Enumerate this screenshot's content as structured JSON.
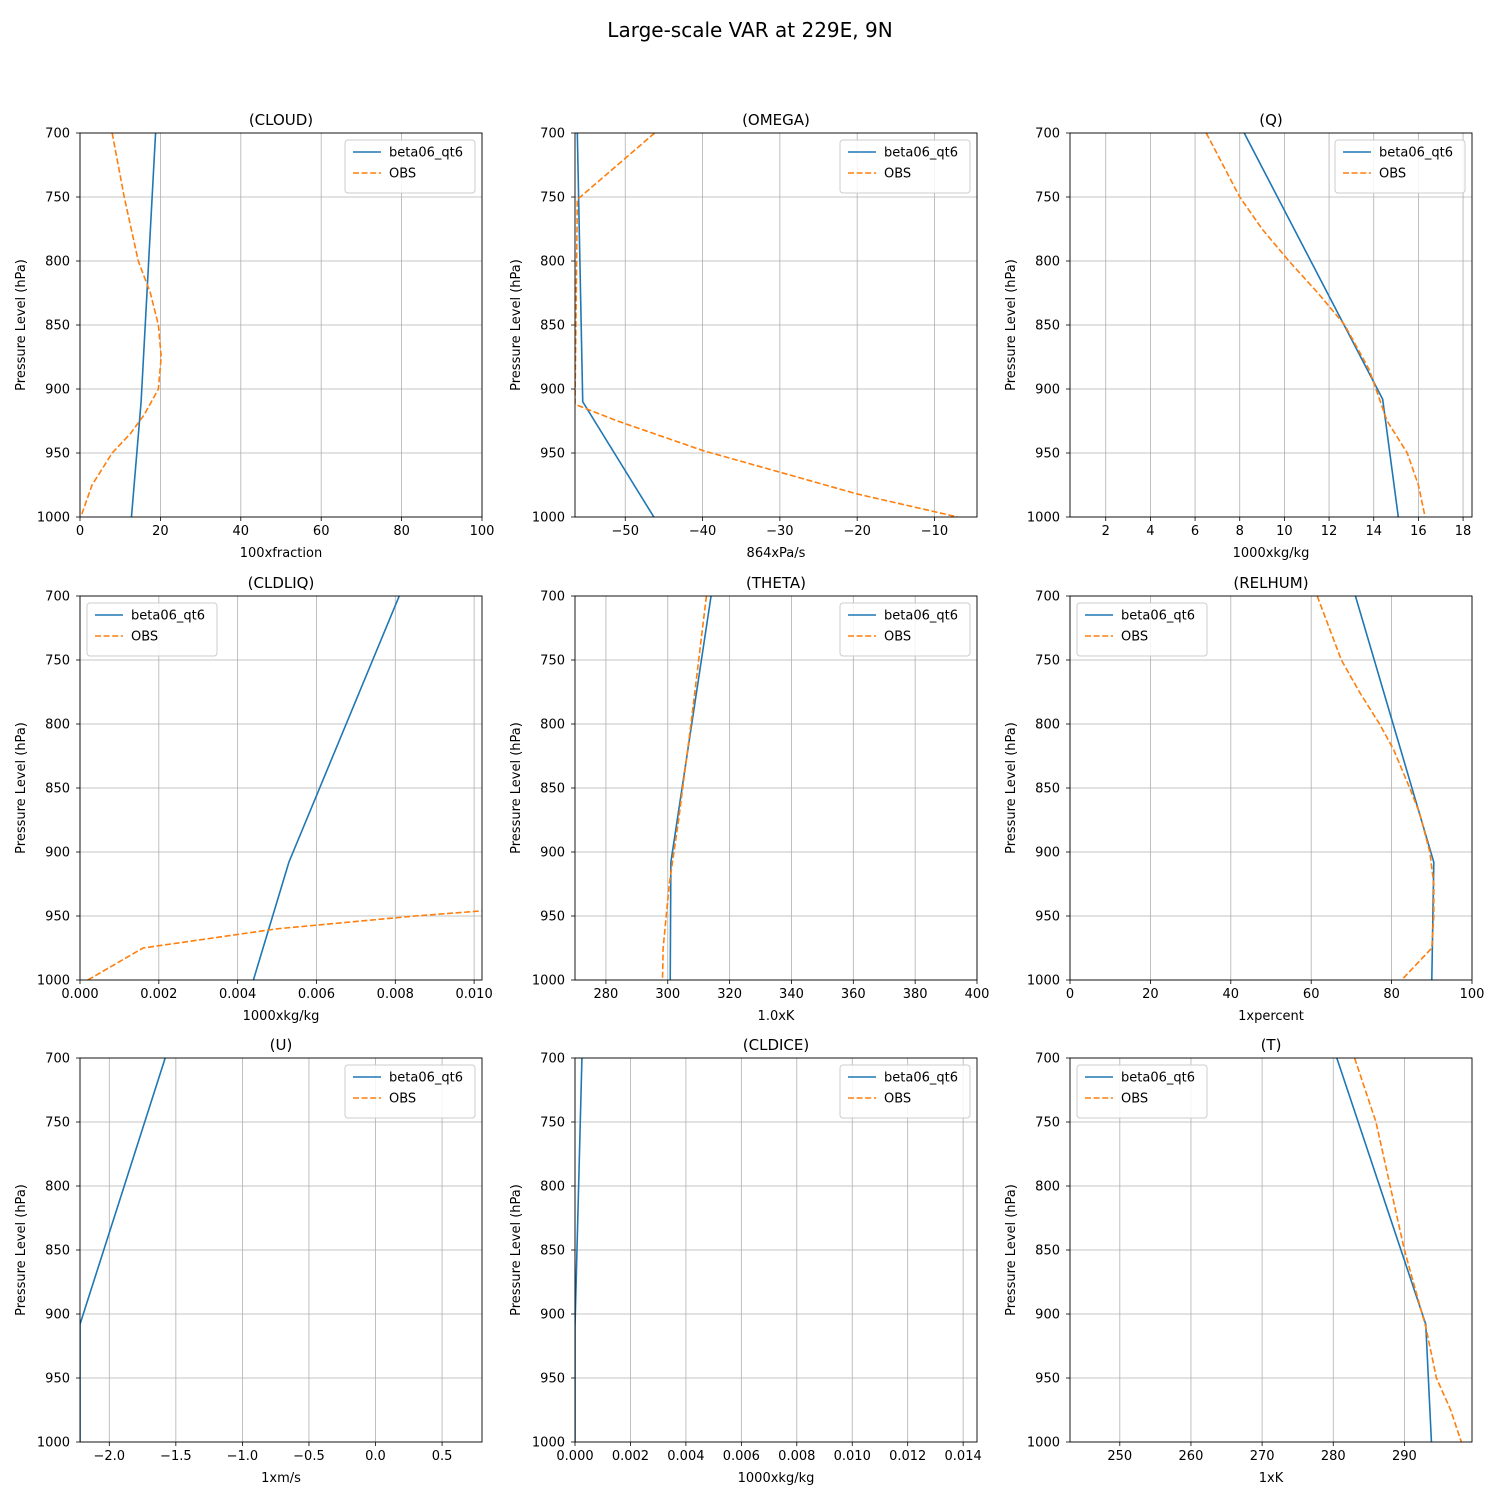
{
  "figure_title": "Large-scale VAR at 229E, 9N",
  "colors": {
    "model": "#1f77b4",
    "obs": "#ff7f0e"
  },
  "chart_data": [
    {
      "type": "line",
      "title": "(CLOUD)",
      "xlabel": "100xfraction",
      "ylabel": "Pressure Level (hPa)",
      "xlim": [
        0,
        100
      ],
      "ylim": [
        1000,
        700
      ],
      "xticks": [
        0,
        20,
        40,
        60,
        80,
        100
      ],
      "xtick_labels": [
        "0",
        "20",
        "40",
        "60",
        "80",
        "100"
      ],
      "yticks": [
        700,
        750,
        800,
        850,
        900,
        950,
        1000
      ],
      "ytick_labels": [
        "700",
        "750",
        "800",
        "850",
        "900",
        "950",
        "1000"
      ],
      "legend": "top-right",
      "series": [
        {
          "name": "beta06_qt6",
          "style": "solid",
          "points": [
            [
              18.8,
              700
            ],
            [
              15.2,
              910
            ],
            [
              12.8,
              1000
            ]
          ]
        },
        {
          "name": "OBS",
          "style": "dashed",
          "points": [
            [
              8.0,
              700
            ],
            [
              11.0,
              750
            ],
            [
              14.5,
              800
            ],
            [
              17.5,
              825
            ],
            [
              19.5,
              850
            ],
            [
              20.2,
              875
            ],
            [
              19.5,
              900
            ],
            [
              16.0,
              920
            ],
            [
              12.5,
              935
            ],
            [
              8.0,
              950
            ],
            [
              3.0,
              975
            ],
            [
              0.2,
              1000
            ]
          ]
        }
      ]
    },
    {
      "type": "line",
      "title": "(OMEGA)",
      "xlabel": "864xPa/s",
      "ylabel": "Pressure Level (hPa)",
      "xlim": [
        -56.5,
        -4.5
      ],
      "ylim": [
        1000,
        700
      ],
      "xticks": [
        -50,
        -40,
        -30,
        -20,
        -10
      ],
      "xtick_labels": [
        "−50",
        "−40",
        "−30",
        "−20",
        "−10"
      ],
      "yticks": [
        700,
        750,
        800,
        850,
        900,
        950,
        1000
      ],
      "ytick_labels": [
        "700",
        "750",
        "800",
        "850",
        "900",
        "950",
        "1000"
      ],
      "legend": "top-right",
      "series": [
        {
          "name": "beta06_qt6",
          "style": "solid",
          "points": [
            [
              -56.2,
              700
            ],
            [
              -55.5,
              910
            ],
            [
              -46.3,
              1000
            ]
          ]
        },
        {
          "name": "OBS",
          "style": "dashed",
          "points": [
            [
              -46.2,
              700
            ],
            [
              -56.2,
              752
            ],
            [
              -56.5,
              912
            ],
            [
              -51.0,
              925
            ],
            [
              -40.0,
              948
            ],
            [
              -30.0,
              965
            ],
            [
              -20.0,
              982
            ],
            [
              -7.0,
              1000
            ]
          ]
        }
      ]
    },
    {
      "type": "line",
      "title": "(Q)",
      "xlabel": "1000xkg/kg",
      "ylabel": "Pressure Level (hPa)",
      "xlim": [
        0.4,
        18.4
      ],
      "ylim": [
        1000,
        700
      ],
      "xticks": [
        2,
        4,
        6,
        8,
        10,
        12,
        14,
        16,
        18
      ],
      "xtick_labels": [
        "2",
        "4",
        "6",
        "8",
        "10",
        "12",
        "14",
        "16",
        "18"
      ],
      "yticks": [
        700,
        750,
        800,
        850,
        900,
        950,
        1000
      ],
      "ytick_labels": [
        "700",
        "750",
        "800",
        "850",
        "900",
        "950",
        "1000"
      ],
      "legend": "top-right",
      "series": [
        {
          "name": "beta06_qt6",
          "style": "solid",
          "points": [
            [
              8.2,
              700
            ],
            [
              14.4,
              908
            ],
            [
              15.1,
              1000
            ]
          ]
        },
        {
          "name": "OBS",
          "style": "dashed",
          "points": [
            [
              6.5,
              700
            ],
            [
              8.0,
              750
            ],
            [
              9.0,
              775
            ],
            [
              10.2,
              800
            ],
            [
              11.5,
              825
            ],
            [
              12.7,
              850
            ],
            [
              13.8,
              885
            ],
            [
              14.6,
              925
            ],
            [
              15.5,
              950
            ],
            [
              16.0,
              975
            ],
            [
              16.3,
              1000
            ]
          ]
        }
      ]
    },
    {
      "type": "line",
      "title": "(CLDLIQ)",
      "xlabel": "1000xkg/kg",
      "ylabel": "Pressure Level (hPa)",
      "xlim": [
        0,
        0.0102
      ],
      "ylim": [
        1000,
        700
      ],
      "xticks": [
        0,
        0.002,
        0.004,
        0.006,
        0.008,
        0.01
      ],
      "xtick_labels": [
        "0.000",
        "0.002",
        "0.004",
        "0.006",
        "0.008",
        "0.010"
      ],
      "yticks": [
        700,
        750,
        800,
        850,
        900,
        950,
        1000
      ],
      "ytick_labels": [
        "700",
        "750",
        "800",
        "850",
        "900",
        "950",
        "1000"
      ],
      "legend": "top-left",
      "series": [
        {
          "name": "beta06_qt6",
          "style": "solid",
          "points": [
            [
              0.0081,
              700
            ],
            [
              0.0053,
              908
            ],
            [
              0.0044,
              1000
            ]
          ]
        },
        {
          "name": "OBS",
          "style": "dashed",
          "points": [
            [
              0.0002,
              1000
            ],
            [
              0.0016,
              975
            ],
            [
              0.005,
              960
            ],
            [
              0.0085,
              950
            ],
            [
              0.0102,
              946
            ]
          ]
        }
      ]
    },
    {
      "type": "line",
      "title": "(THETA)",
      "xlabel": "1.0xK",
      "ylabel": "Pressure Level (hPa)",
      "xlim": [
        270,
        400
      ],
      "ylim": [
        1000,
        700
      ],
      "xticks": [
        280,
        300,
        320,
        340,
        360,
        380,
        400
      ],
      "xtick_labels": [
        "280",
        "300",
        "320",
        "340",
        "360",
        "380",
        "400"
      ],
      "yticks": [
        700,
        750,
        800,
        850,
        900,
        950,
        1000
      ],
      "ytick_labels": [
        "700",
        "750",
        "800",
        "850",
        "900",
        "950",
        "1000"
      ],
      "legend": "top-right",
      "series": [
        {
          "name": "beta06_qt6",
          "style": "solid",
          "points": [
            [
              314.0,
              700
            ],
            [
              301.0,
              908
            ],
            [
              300.8,
              1000
            ]
          ]
        },
        {
          "name": "OBS",
          "style": "dashed",
          "points": [
            [
              312.5,
              700
            ],
            [
              307.5,
              800
            ],
            [
              303.5,
              875
            ],
            [
              300.5,
              925
            ],
            [
              298.5,
              975
            ],
            [
              298.3,
              1000
            ]
          ]
        }
      ]
    },
    {
      "type": "line",
      "title": "(RELHUM)",
      "xlabel": "1xpercent",
      "ylabel": "Pressure Level (hPa)",
      "xlim": [
        0,
        100
      ],
      "ylim": [
        1000,
        700
      ],
      "xticks": [
        0,
        20,
        40,
        60,
        80,
        100
      ],
      "xtick_labels": [
        "0",
        "20",
        "40",
        "60",
        "80",
        "100"
      ],
      "yticks": [
        700,
        750,
        800,
        850,
        900,
        950,
        1000
      ],
      "ytick_labels": [
        "700",
        "750",
        "800",
        "850",
        "900",
        "950",
        "1000"
      ],
      "legend": "top-left",
      "series": [
        {
          "name": "beta06_qt6",
          "style": "solid",
          "points": [
            [
              71.0,
              700
            ],
            [
              90.5,
              908
            ],
            [
              90.0,
              1000
            ]
          ]
        },
        {
          "name": "OBS",
          "style": "dashed",
          "points": [
            [
              61.5,
              700
            ],
            [
              67.5,
              750
            ],
            [
              72.0,
              775
            ],
            [
              77.0,
              800
            ],
            [
              80.5,
              820
            ],
            [
              84.5,
              850
            ],
            [
              87.0,
              870
            ],
            [
              89.5,
              900
            ],
            [
              90.5,
              925
            ],
            [
              90.5,
              950
            ],
            [
              90.0,
              975
            ],
            [
              82.5,
              1000
            ]
          ]
        }
      ]
    },
    {
      "type": "line",
      "title": "(U)",
      "xlabel": "1xm/s",
      "ylabel": "Pressure Level (hPa)",
      "xlim": [
        -2.22,
        0.8
      ],
      "ylim": [
        1000,
        700
      ],
      "xticks": [
        -2.0,
        -1.5,
        -1.0,
        -0.5,
        0.0,
        0.5
      ],
      "xtick_labels": [
        "−2.0",
        "−1.5",
        "−1.0",
        "−0.5",
        "0.0",
        "0.5"
      ],
      "yticks": [
        700,
        750,
        800,
        850,
        900,
        950,
        1000
      ],
      "ytick_labels": [
        "700",
        "750",
        "800",
        "850",
        "900",
        "950",
        "1000"
      ],
      "legend": "top-right",
      "series": [
        {
          "name": "beta06_qt6",
          "style": "solid",
          "points": [
            [
              -1.58,
              700
            ],
            [
              -2.22,
              908
            ],
            [
              -2.22,
              1000
            ]
          ]
        },
        {
          "name": "OBS",
          "style": "dashed",
          "points": []
        }
      ]
    },
    {
      "type": "line",
      "title": "(CLDICE)",
      "xlabel": "1000xkg/kg",
      "ylabel": "Pressure Level (hPa)",
      "xlim": [
        0,
        0.0145
      ],
      "ylim": [
        1000,
        700
      ],
      "xticks": [
        0,
        0.002,
        0.004,
        0.006,
        0.008,
        0.01,
        0.012,
        0.014
      ],
      "xtick_labels": [
        "0.000",
        "0.002",
        "0.004",
        "0.006",
        "0.008",
        "0.010",
        "0.012",
        "0.014"
      ],
      "yticks": [
        700,
        750,
        800,
        850,
        900,
        950,
        1000
      ],
      "ytick_labels": [
        "700",
        "750",
        "800",
        "850",
        "900",
        "950",
        "1000"
      ],
      "legend": "top-right",
      "series": [
        {
          "name": "beta06_qt6",
          "style": "solid",
          "points": [
            [
              0.00025,
              700
            ],
            [
              0.0,
              910
            ],
            [
              0.0,
              1000
            ]
          ]
        },
        {
          "name": "OBS",
          "style": "dashed",
          "points": []
        }
      ]
    },
    {
      "type": "line",
      "title": "(T)",
      "xlabel": "1xK",
      "ylabel": "Pressure Level (hPa)",
      "xlim": [
        243.0,
        299.5
      ],
      "ylim": [
        1000,
        700
      ],
      "xticks": [
        250,
        260,
        270,
        280,
        290
      ],
      "xtick_labels": [
        "250",
        "260",
        "270",
        "280",
        "290"
      ],
      "yticks": [
        700,
        750,
        800,
        850,
        900,
        950,
        1000
      ],
      "ytick_labels": [
        "700",
        "750",
        "800",
        "850",
        "900",
        "950",
        "1000"
      ],
      "legend": "top-left",
      "series": [
        {
          "name": "beta06_qt6",
          "style": "solid",
          "points": [
            [
              280.5,
              700
            ],
            [
              293.0,
              908
            ],
            [
              293.8,
              1000
            ]
          ]
        },
        {
          "name": "OBS",
          "style": "dashed",
          "points": [
            [
              283.0,
              700
            ],
            [
              286.0,
              750
            ],
            [
              288.0,
              800
            ],
            [
              290.0,
              850
            ],
            [
              291.5,
              880
            ],
            [
              293.0,
              910
            ],
            [
              294.5,
              950
            ],
            [
              296.5,
              975
            ],
            [
              298.0,
              1000
            ]
          ]
        }
      ]
    }
  ]
}
